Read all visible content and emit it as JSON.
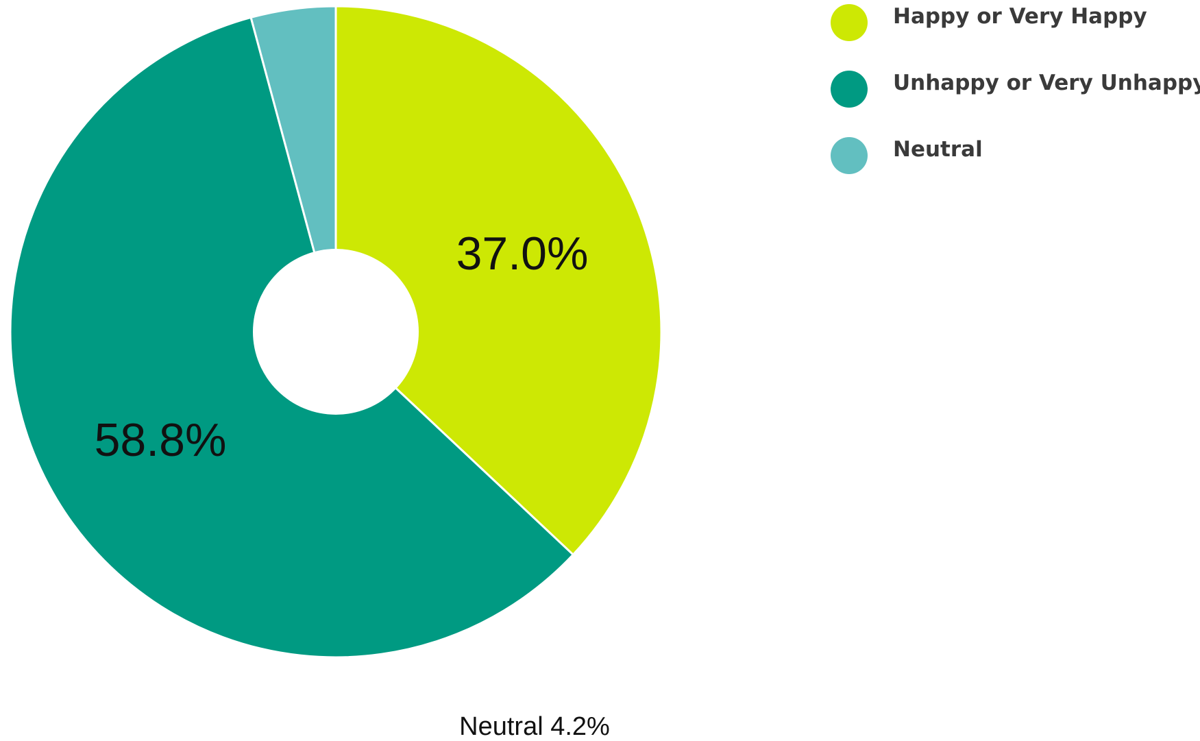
{
  "chart_data": {
    "type": "pie",
    "hole": true,
    "title": "",
    "legend_position": "top-right",
    "slices": [
      {
        "name": "Happy or Very Happy",
        "value": 37.0,
        "label": "37.0%",
        "label_placement": "inside",
        "color": "#cde804"
      },
      {
        "name": "Unhappy or Very Unhappy",
        "value": 58.8,
        "label": "58.8%",
        "label_placement": "inside",
        "color": "#009a82"
      },
      {
        "name": "Neutral",
        "value": 4.2,
        "label": "Neutral 4.2%",
        "label_placement": "outside",
        "color": "#62bfc0"
      }
    ]
  }
}
